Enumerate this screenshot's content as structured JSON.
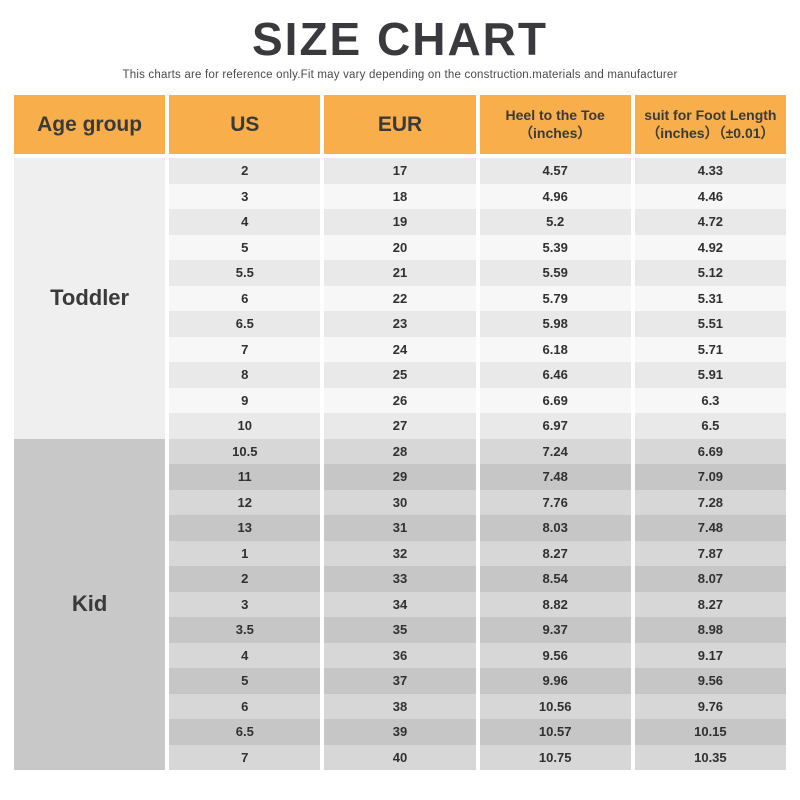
{
  "title": "SIZE CHART",
  "subtitle": "This charts are for reference only.Fit may vary depending on the construction.materials and manufacturer",
  "table": {
    "headers": {
      "age": "Age group",
      "us": "US",
      "eur": "EUR",
      "heel_line1": "Heel to the Toe",
      "heel_line2": "（inches）",
      "foot_line1": "suit for Foot Length",
      "foot_line2": "（inches）（±0.01）"
    }
  },
  "colors": {
    "header_bg": "#F8AE4A",
    "header_text": "#3A3A3A",
    "title_text": "#3A3A3E",
    "subtitle_text": "#4A4A4A",
    "cell_text": "#303030",
    "toddler_label_bg": "#EFEFEF",
    "toddler_row_odd": "#E9E9E9",
    "toddler_row_even": "#F7F7F7",
    "kid_label_bg": "#C8C8C8",
    "kid_row_odd": "#D7D7D7",
    "kid_row_even": "#C6C6C6"
  },
  "chart_data": {
    "type": "table",
    "title": "SIZE CHART",
    "subtitle": "This charts are for reference only.Fit may vary depending on the construction.materials and manufacturer",
    "columns": [
      "Age group",
      "US",
      "EUR",
      "Heel to the Toe（inches）",
      "suit for Foot Length（inches）（±0.01）"
    ],
    "groups": [
      {
        "label": "Toddler",
        "rows": [
          [
            "2",
            "17",
            "4.57",
            "4.33"
          ],
          [
            "3",
            "18",
            "4.96",
            "4.46"
          ],
          [
            "4",
            "19",
            "5.2",
            "4.72"
          ],
          [
            "5",
            "20",
            "5.39",
            "4.92"
          ],
          [
            "5.5",
            "21",
            "5.59",
            "5.12"
          ],
          [
            "6",
            "22",
            "5.79",
            "5.31"
          ],
          [
            "6.5",
            "23",
            "5.98",
            "5.51"
          ],
          [
            "7",
            "24",
            "6.18",
            "5.71"
          ],
          [
            "8",
            "25",
            "6.46",
            "5.91"
          ],
          [
            "9",
            "26",
            "6.69",
            "6.3"
          ],
          [
            "10",
            "27",
            "6.97",
            "6.5"
          ]
        ]
      },
      {
        "label": "Kid",
        "rows": [
          [
            "10.5",
            "28",
            "7.24",
            "6.69"
          ],
          [
            "11",
            "29",
            "7.48",
            "7.09"
          ],
          [
            "12",
            "30",
            "7.76",
            "7.28"
          ],
          [
            "13",
            "31",
            "8.03",
            "7.48"
          ],
          [
            "1",
            "32",
            "8.27",
            "7.87"
          ],
          [
            "2",
            "33",
            "8.54",
            "8.07"
          ],
          [
            "3",
            "34",
            "8.82",
            "8.27"
          ],
          [
            "3.5",
            "35",
            "9.37",
            "8.98"
          ],
          [
            "4",
            "36",
            "9.56",
            "9.17"
          ],
          [
            "5",
            "37",
            "9.96",
            "9.56"
          ],
          [
            "6",
            "38",
            "10.56",
            "9.76"
          ],
          [
            "6.5",
            "39",
            "10.57",
            "10.15"
          ],
          [
            "7",
            "40",
            "10.75",
            "10.35"
          ]
        ]
      }
    ]
  }
}
